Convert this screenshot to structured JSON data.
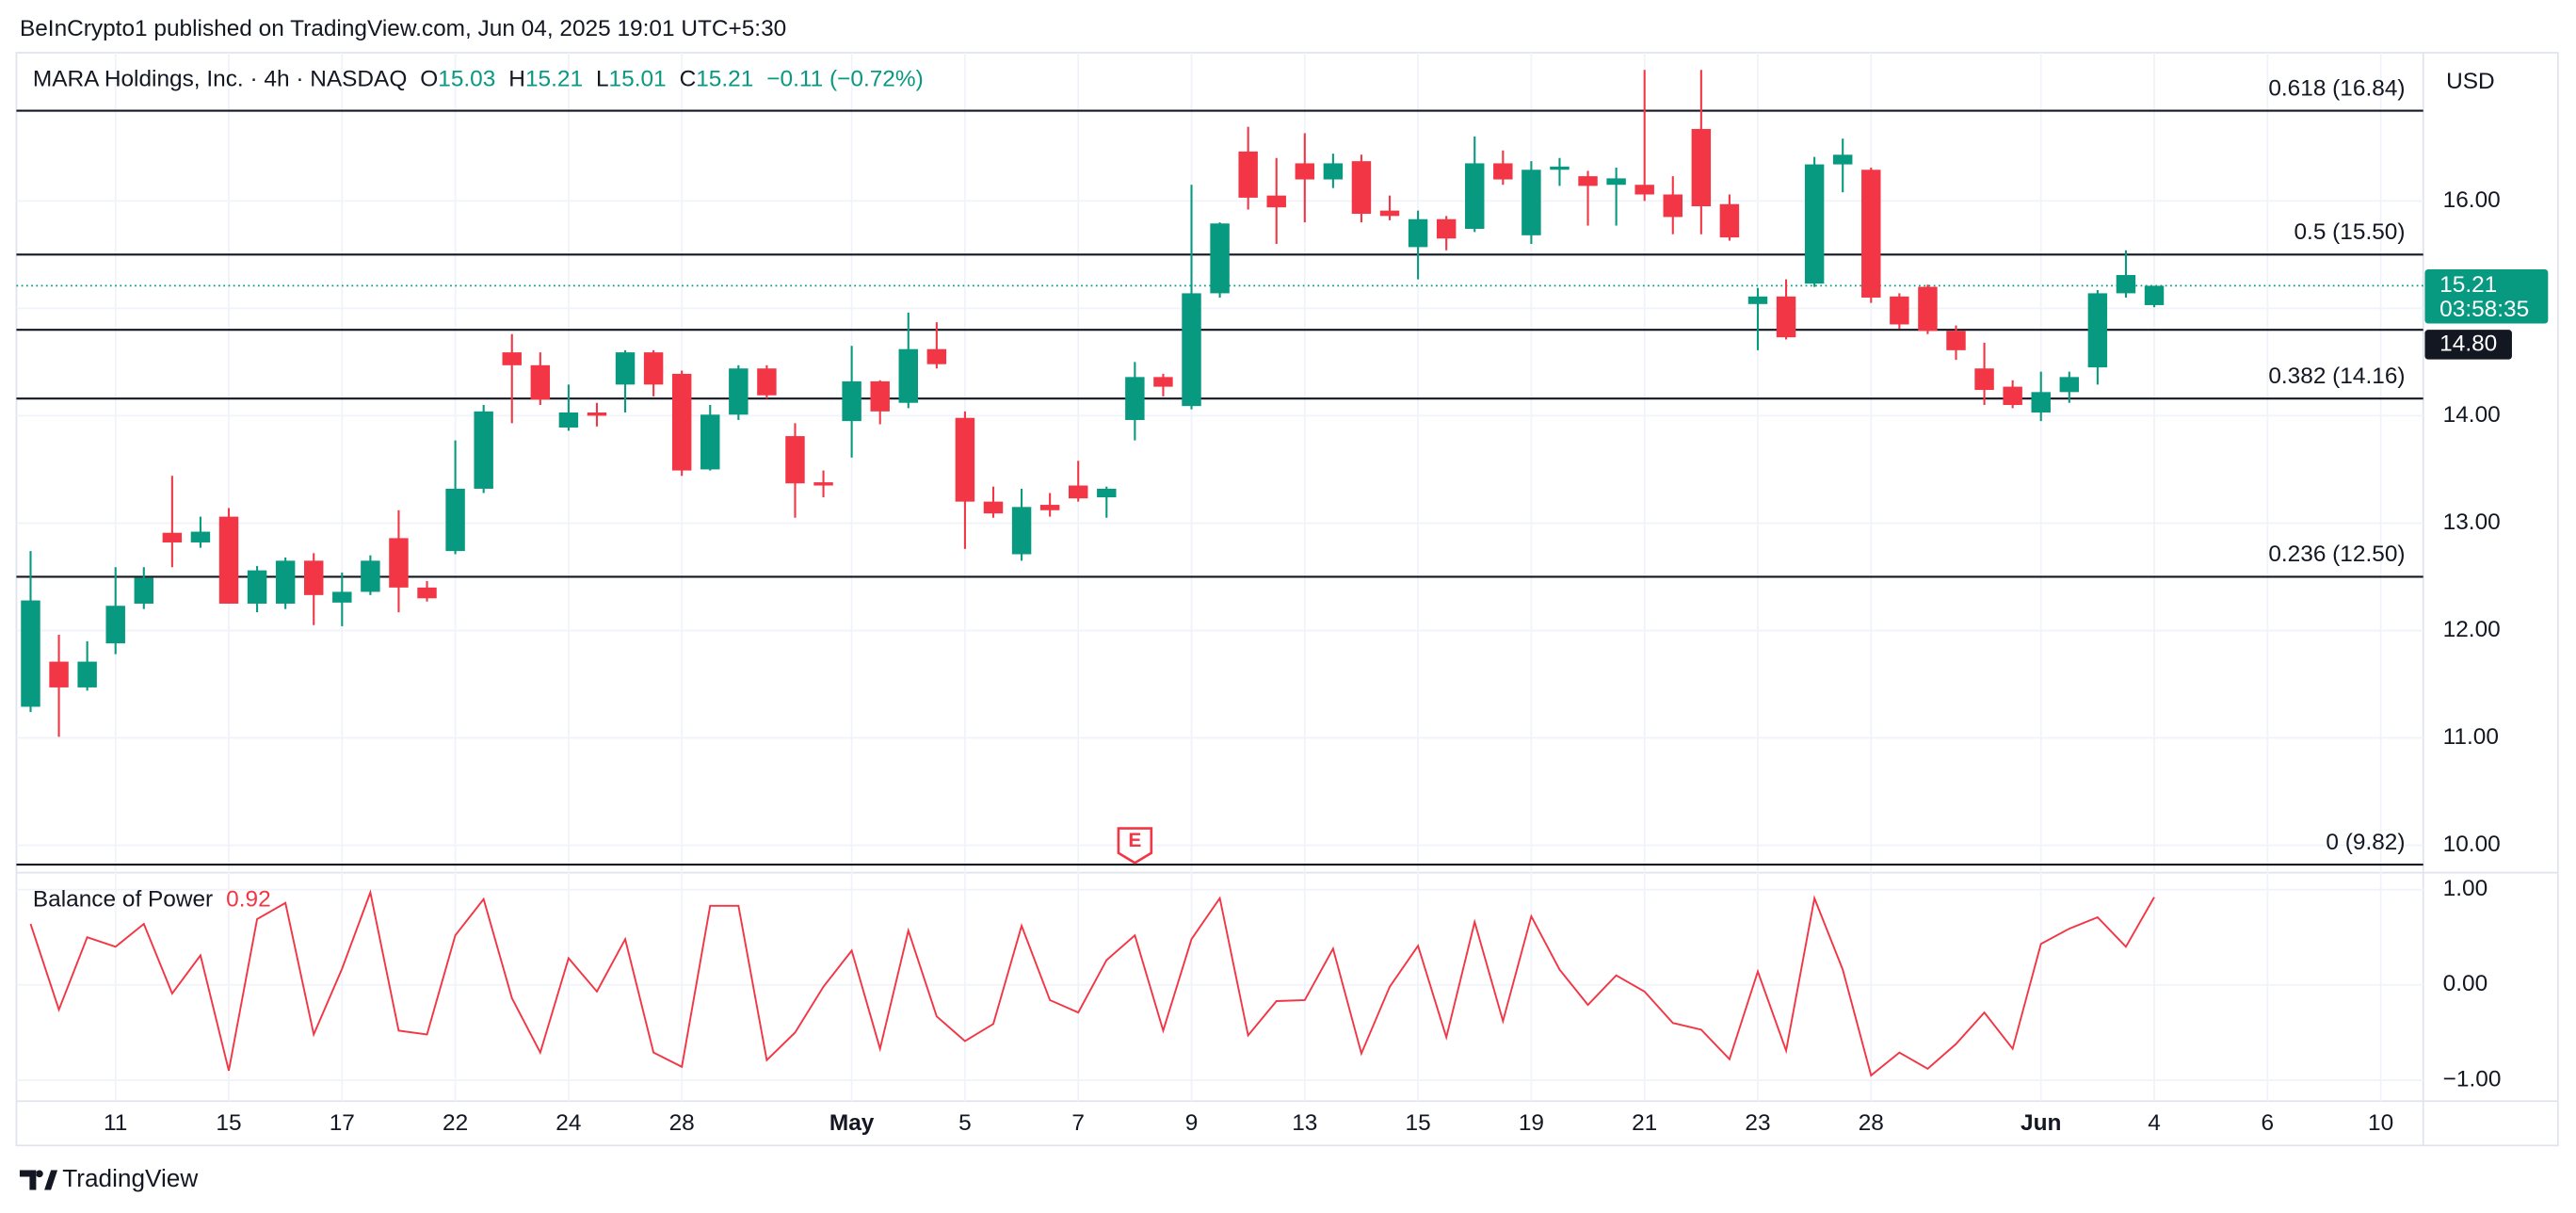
{
  "header": {
    "published": "BeInCrypto1 published on TradingView.com, Jun 04, 2025 19:01 UTC+5:30"
  },
  "footer": {
    "brand": "TradingView"
  },
  "chart_data": [
    {
      "type": "candlestick",
      "title": "MARA Holdings, Inc. · 4h · NASDAQ",
      "legend_labels": [
        "O",
        "H",
        "L",
        "C"
      ],
      "change": "−0.11 (−0.72%)",
      "currency": "USD",
      "countdown": "03:58:35",
      "up_color": "#089981",
      "down_color": "#f23645",
      "open": [
        11.29,
        11.71,
        11.47,
        11.88,
        12.25,
        12.91,
        12.82,
        13.06,
        12.25,
        12.25,
        12.65,
        12.26,
        12.36,
        12.86,
        12.4,
        12.74,
        13.32,
        14.59,
        14.47,
        13.89,
        14.03,
        14.29,
        14.59,
        14.39,
        13.5,
        14.01,
        14.44,
        13.81,
        13.38,
        13.95,
        14.32,
        14.12,
        14.62,
        13.98,
        13.2,
        12.71,
        13.17,
        13.35,
        13.24,
        13.96,
        14.36,
        14.09,
        15.14,
        16.46,
        16.05,
        16.35,
        16.2,
        16.37,
        15.91,
        15.57,
        15.83,
        15.74,
        16.35,
        15.68,
        16.29,
        16.23,
        16.15,
        16.15,
        16.06,
        16.67,
        15.97,
        15.04,
        15.11,
        15.23,
        16.34,
        16.29,
        15.11,
        15.2,
        14.79,
        14.44,
        14.27,
        14.03,
        14.22,
        14.45,
        15.14,
        15.03
      ],
      "high": [
        12.74,
        11.96,
        11.9,
        12.59,
        12.59,
        13.44,
        13.06,
        13.14,
        12.6,
        12.68,
        12.72,
        12.54,
        12.7,
        13.12,
        12.46,
        13.77,
        14.1,
        14.76,
        14.59,
        14.29,
        14.12,
        14.61,
        14.61,
        14.42,
        14.1,
        14.47,
        14.47,
        13.93,
        13.49,
        14.65,
        14.33,
        14.96,
        14.87,
        14.04,
        13.34,
        13.32,
        13.28,
        13.58,
        13.34,
        14.5,
        14.39,
        16.15,
        15.8,
        16.69,
        16.4,
        16.63,
        16.44,
        16.43,
        16.05,
        15.91,
        15.86,
        16.6,
        16.47,
        16.37,
        16.4,
        16.28,
        16.31,
        17.22,
        16.23,
        17.22,
        16.06,
        15.19,
        15.27,
        16.41,
        16.58,
        16.31,
        15.14,
        15.22,
        14.84,
        14.68,
        14.33,
        14.41,
        14.41,
        15.17,
        15.54,
        15.21
      ],
      "low": [
        11.24,
        11.01,
        11.44,
        11.78,
        12.2,
        12.59,
        12.77,
        12.25,
        12.17,
        12.2,
        12.05,
        12.04,
        12.33,
        12.17,
        12.27,
        12.71,
        13.28,
        13.93,
        14.1,
        13.86,
        13.9,
        14.03,
        14.18,
        13.44,
        13.49,
        13.96,
        14.16,
        13.05,
        13.24,
        13.61,
        13.92,
        14.07,
        14.44,
        12.76,
        13.05,
        12.65,
        13.06,
        13.2,
        13.05,
        13.77,
        14.18,
        14.06,
        15.1,
        15.92,
        15.6,
        15.8,
        16.12,
        15.8,
        15.82,
        15.27,
        15.54,
        15.71,
        16.15,
        15.6,
        16.14,
        15.77,
        15.77,
        16.0,
        15.69,
        15.69,
        15.63,
        14.61,
        14.71,
        15.2,
        16.08,
        15.05,
        14.81,
        14.76,
        14.52,
        14.1,
        14.07,
        13.95,
        14.12,
        14.29,
        15.1,
        15.01
      ],
      "close": [
        12.28,
        11.47,
        11.71,
        12.23,
        12.49,
        12.82,
        12.92,
        12.25,
        12.56,
        12.65,
        12.33,
        12.36,
        12.65,
        12.4,
        12.3,
        13.32,
        14.04,
        14.47,
        14.15,
        14.03,
        14.0,
        14.59,
        14.29,
        13.49,
        14.01,
        14.44,
        14.19,
        13.37,
        13.35,
        14.32,
        14.04,
        14.62,
        14.48,
        13.2,
        13.09,
        13.15,
        13.12,
        13.23,
        13.32,
        14.36,
        14.27,
        15.14,
        15.79,
        16.03,
        15.94,
        16.2,
        16.35,
        15.88,
        15.86,
        15.83,
        15.65,
        16.35,
        16.2,
        16.29,
        16.32,
        16.14,
        16.21,
        16.06,
        15.85,
        15.95,
        15.66,
        15.11,
        14.73,
        16.34,
        16.43,
        15.1,
        14.85,
        14.79,
        14.61,
        14.24,
        14.1,
        14.22,
        14.36,
        15.14,
        15.31,
        15.21
      ],
      "xlim": [
        -0.5,
        84.5
      ],
      "xticks": [
        {
          "value": 3,
          "label": "11"
        },
        {
          "value": 7,
          "label": "15"
        },
        {
          "value": 11,
          "label": "17"
        },
        {
          "value": 15,
          "label": "22"
        },
        {
          "value": 19,
          "label": "24"
        },
        {
          "value": 23,
          "label": "28"
        },
        {
          "value": 29,
          "label": "May"
        },
        {
          "value": 33,
          "label": "5"
        },
        {
          "value": 37,
          "label": "7"
        },
        {
          "value": 41,
          "label": "9"
        },
        {
          "value": 45,
          "label": "13"
        },
        {
          "value": 49,
          "label": "15"
        },
        {
          "value": 53,
          "label": "19"
        },
        {
          "value": 57,
          "label": "21"
        },
        {
          "value": 61,
          "label": "23"
        },
        {
          "value": 65,
          "label": "28"
        },
        {
          "value": 71,
          "label": "Jun"
        },
        {
          "value": 75,
          "label": "4"
        },
        {
          "value": 79,
          "label": "6"
        },
        {
          "value": 83,
          "label": "10"
        }
      ],
      "ylim": [
        9.76,
        17.38
      ],
      "yticks": [
        {
          "value": 10,
          "label": "10.00"
        },
        {
          "value": 11,
          "label": "11.00"
        },
        {
          "value": 12,
          "label": "12.00"
        },
        {
          "value": 13,
          "label": "13.00"
        },
        {
          "value": 14,
          "label": "14.00"
        },
        {
          "value": 15,
          "label": "15.00"
        },
        {
          "value": 16,
          "label": "16.00"
        }
      ],
      "levels": [
        {
          "value": 16.84,
          "label": "0.618 (16.84)"
        },
        {
          "value": 15.5,
          "label": "0.5 (15.50)"
        },
        {
          "value": 14.16,
          "label": "0.382 (14.16)"
        },
        {
          "value": 12.5,
          "label": "0.236 (12.50)"
        },
        {
          "value": 9.82,
          "label": "0 (9.82)"
        }
      ],
      "hlines": [
        {
          "value": 14.8,
          "label": "14.80"
        }
      ],
      "events": [
        {
          "index": 39,
          "label": "E"
        }
      ],
      "grid": true
    },
    {
      "type": "line",
      "title": "Balance of Power",
      "color": "#f23645",
      "values": [
        0.64,
        -0.26,
        0.5,
        0.4,
        0.64,
        -0.09,
        0.31,
        -0.9,
        0.69,
        0.86,
        -0.52,
        0.17,
        0.97,
        -0.48,
        -0.52,
        0.52,
        0.9,
        -0.14,
        -0.71,
        0.28,
        -0.07,
        0.48,
        -0.71,
        -0.86,
        0.83,
        0.83,
        -0.79,
        -0.5,
        -0.02,
        0.36,
        -0.67,
        0.57,
        -0.33,
        -0.59,
        -0.41,
        0.62,
        -0.16,
        -0.29,
        0.26,
        0.52,
        -0.48,
        0.48,
        0.91,
        -0.53,
        -0.17,
        -0.16,
        0.38,
        -0.72,
        -0.02,
        0.41,
        -0.55,
        0.66,
        -0.38,
        0.72,
        0.16,
        -0.21,
        0.1,
        -0.07,
        -0.4,
        -0.47,
        -0.78,
        0.14,
        -0.69,
        0.91,
        0.16,
        -0.95,
        -0.71,
        -0.88,
        -0.62,
        -0.29,
        -0.67,
        0.43,
        0.59,
        0.71,
        0.4,
        0.92
      ],
      "ylim": [
        -1.22,
        1.16
      ],
      "yticks": [
        {
          "value": 1,
          "label": "1.00"
        },
        {
          "value": 0,
          "label": "0.00"
        },
        {
          "value": -1,
          "label": "−1.00"
        }
      ],
      "grid": true
    }
  ]
}
